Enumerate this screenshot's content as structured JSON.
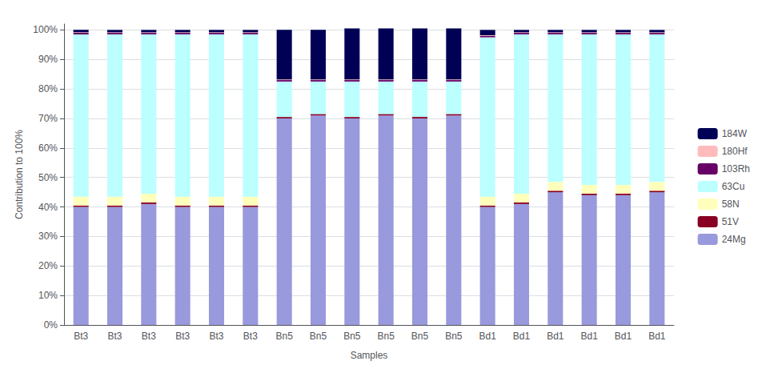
{
  "chart_data": {
    "type": "bar",
    "stacked": true,
    "xlabel": "Samples",
    "ylabel": "Contribution to 100%",
    "categories": [
      "Bt3",
      "Bt3",
      "Bt3",
      "Bt3",
      "Bt3",
      "Bt3",
      "Bn5",
      "Bn5",
      "Bn5",
      "Bn5",
      "Bn5",
      "Bn5",
      "Bd1",
      "Bd1",
      "Bd1",
      "Bd1",
      "Bd1",
      "Bd1"
    ],
    "series": [
      {
        "name": "24Mg",
        "color": "#9999dd",
        "values": [
          40,
          40,
          41,
          40,
          40,
          40,
          70,
          71,
          70,
          71,
          70,
          71,
          40,
          41,
          45,
          44,
          44,
          45
        ]
      },
      {
        "name": "51V",
        "color": "#880022",
        "values": [
          0.5,
          0.5,
          0.5,
          0.5,
          0.5,
          0.5,
          0.5,
          0.5,
          0.5,
          0.5,
          0.5,
          0.5,
          0.5,
          0.5,
          0.5,
          0.5,
          0.5,
          0.5
        ]
      },
      {
        "name": "58N",
        "color": "#ffffbb",
        "values": [
          3,
          3,
          3,
          3,
          3,
          3,
          0,
          0,
          0,
          0,
          0,
          0,
          3,
          3,
          3,
          3,
          3,
          3
        ]
      },
      {
        "name": "63Cu",
        "color": "#bbffff",
        "values": [
          55,
          55,
          54,
          55,
          55,
          55,
          12,
          11,
          12,
          11,
          12,
          11,
          54,
          54,
          50,
          51,
          51,
          50
        ]
      },
      {
        "name": "103Rh",
        "color": "#660066",
        "values": [
          0.5,
          0.5,
          0.5,
          0.5,
          0.5,
          0.5,
          0.5,
          0.5,
          0.5,
          0.5,
          0.5,
          0.5,
          0.5,
          0.5,
          0.5,
          0.5,
          0.5,
          0.5
        ]
      },
      {
        "name": "180Hf",
        "color": "#ffbbbb",
        "values": [
          0.2,
          0.2,
          0.2,
          0.2,
          0.2,
          0.2,
          0.2,
          0.2,
          0.2,
          0.2,
          0.2,
          0.2,
          0.2,
          0.2,
          0.2,
          0.2,
          0.2,
          0.2
        ]
      },
      {
        "name": "184W",
        "color": "#000055",
        "values": [
          0.8,
          0.8,
          0.8,
          0.8,
          0.8,
          0.8,
          16.8,
          16.8,
          17.3,
          17.3,
          17.3,
          17.3,
          1.8,
          0.8,
          0.8,
          0.8,
          0.8,
          0.8
        ]
      }
    ],
    "ylim": [
      0,
      102
    ],
    "yticks": [
      {
        "value": 0,
        "label": "0%"
      },
      {
        "value": 10,
        "label": "10%"
      },
      {
        "value": 20,
        "label": "20%"
      },
      {
        "value": 30,
        "label": "30%"
      },
      {
        "value": 40,
        "label": "40%"
      },
      {
        "value": 50,
        "label": "50%"
      },
      {
        "value": 60,
        "label": "60%"
      },
      {
        "value": 70,
        "label": "70%"
      },
      {
        "value": 80,
        "label": "80%"
      },
      {
        "value": 90,
        "label": "90%"
      },
      {
        "value": 100,
        "label": "100%"
      }
    ],
    "grid": true,
    "legend": "right"
  }
}
